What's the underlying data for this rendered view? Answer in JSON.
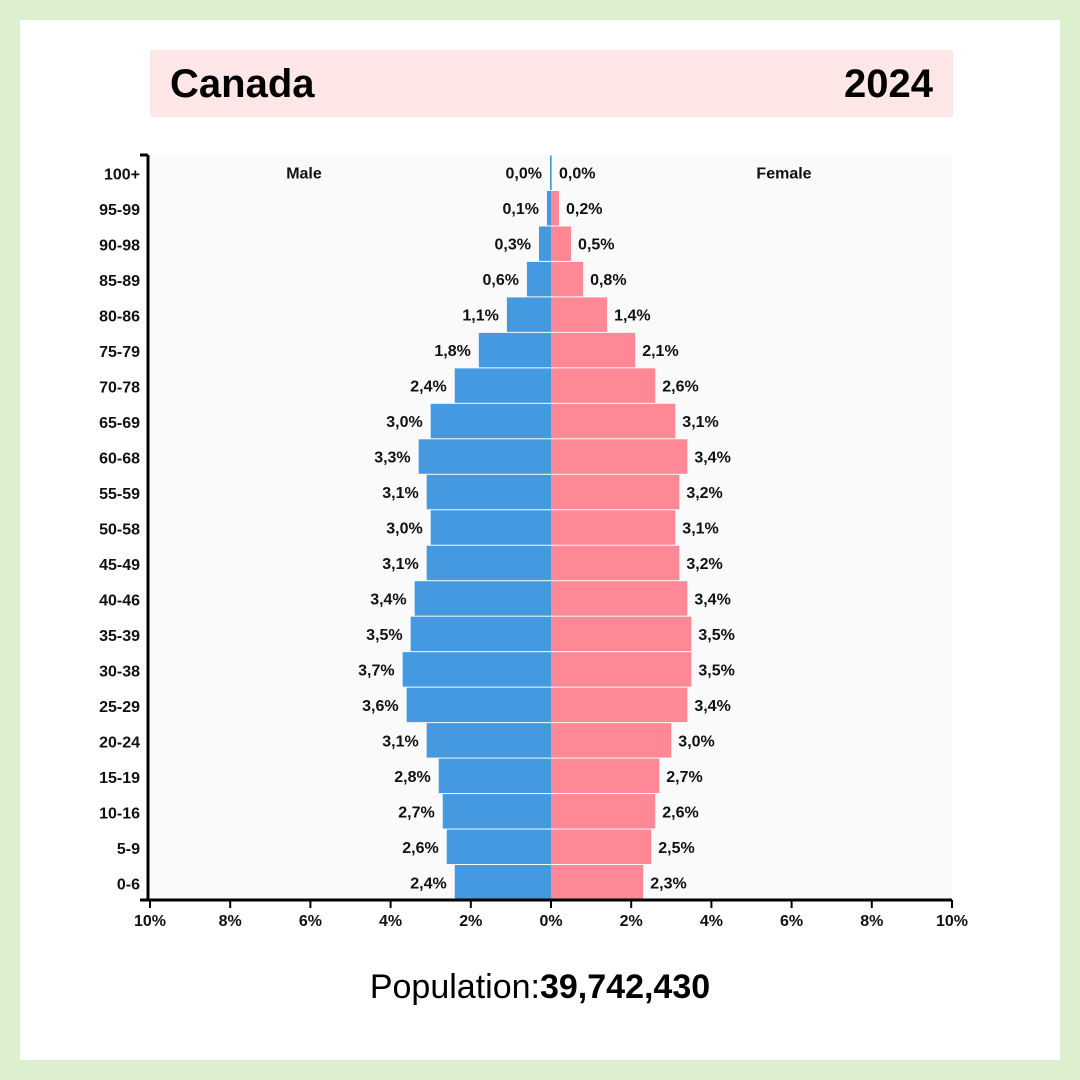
{
  "header": {
    "country": "Canada",
    "year": "2024"
  },
  "footer": {
    "population_label": "Population:",
    "population_value": "39,742,430"
  },
  "colors": {
    "male": "#4499e0",
    "female": "#ff8896",
    "plot_bg": "#fafafa",
    "title_bg": "#ffe7e8",
    "frame": "#dcf0cf"
  },
  "chart_data": {
    "type": "bar",
    "orientation": "horizontal-population-pyramid",
    "categories": [
      "100+",
      "95-99",
      "90-98",
      "85-89",
      "80-86",
      "75-79",
      "70-78",
      "65-69",
      "60-68",
      "55-59",
      "50-58",
      "45-49",
      "40-46",
      "35-39",
      "30-38",
      "25-29",
      "20-24",
      "15-19",
      "10-16",
      "5-9",
      "0-6"
    ],
    "series": [
      {
        "name": "Male",
        "values": [
          0.0,
          0.1,
          0.3,
          0.6,
          1.1,
          1.8,
          2.4,
          3.0,
          3.3,
          3.1,
          3.0,
          3.1,
          3.4,
          3.5,
          3.7,
          3.6,
          3.1,
          2.8,
          2.7,
          2.6,
          2.4
        ],
        "labels": [
          "0,0%",
          "0,1%",
          "0,3%",
          "0,6%",
          "1,1%",
          "1,8%",
          "2,4%",
          "3,0%",
          "3,3%",
          "3,1%",
          "3,0%",
          "3,1%",
          "3,4%",
          "3,5%",
          "3,7%",
          "3,6%",
          "3,1%",
          "2,8%",
          "2,7%",
          "2,6%",
          "2,4%"
        ]
      },
      {
        "name": "Female",
        "values": [
          0.0,
          0.2,
          0.5,
          0.8,
          1.4,
          2.1,
          2.6,
          3.1,
          3.4,
          3.2,
          3.1,
          3.2,
          3.4,
          3.5,
          3.5,
          3.4,
          3.0,
          2.7,
          2.6,
          2.5,
          2.3
        ],
        "labels": [
          "0,0%",
          "0,2%",
          "0,5%",
          "0,8%",
          "1,4%",
          "2,1%",
          "2,6%",
          "3,1%",
          "3,4%",
          "3,2%",
          "3,1%",
          "3,2%",
          "3,4%",
          "3,5%",
          "3,5%",
          "3,4%",
          "3,0%",
          "2,7%",
          "2,6%",
          "2,5%",
          "2,3%"
        ]
      }
    ],
    "xticks": [
      "10%",
      "8%",
      "6%",
      "4%",
      "2%",
      "0%",
      "2%",
      "4%",
      "6%",
      "8%",
      "10%"
    ],
    "xlim": [
      -10,
      10
    ],
    "legend": [
      "Male",
      "Female"
    ],
    "legend_placement": "top-inside",
    "grid": false
  }
}
